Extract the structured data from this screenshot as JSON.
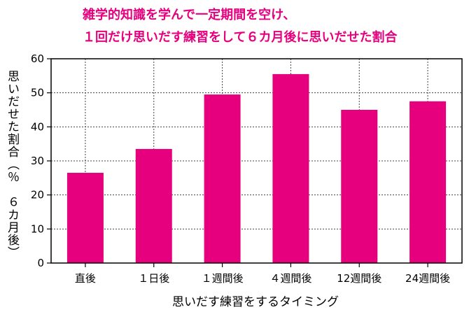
{
  "chart_data": {
    "type": "bar",
    "title_lines": [
      "雑学的知識を学んで一定期間を空け、",
      "１回だけ思いだす練習をして６カ月後に思いだせた割合"
    ],
    "xlabel": "思いだす練習をするタイミング",
    "ylabel": "思いだせた割合（％　６カ月後）",
    "categories": [
      "直後",
      "１日後",
      "１週間後",
      "４週間後",
      "12週間後",
      "24週間後"
    ],
    "values": [
      26.5,
      33.5,
      49.5,
      55.5,
      45,
      47.5
    ],
    "ylim": [
      0,
      60
    ],
    "yticks": [
      0,
      10,
      20,
      30,
      40,
      50,
      60
    ],
    "grid": true,
    "bar_color": "#e6007e"
  }
}
